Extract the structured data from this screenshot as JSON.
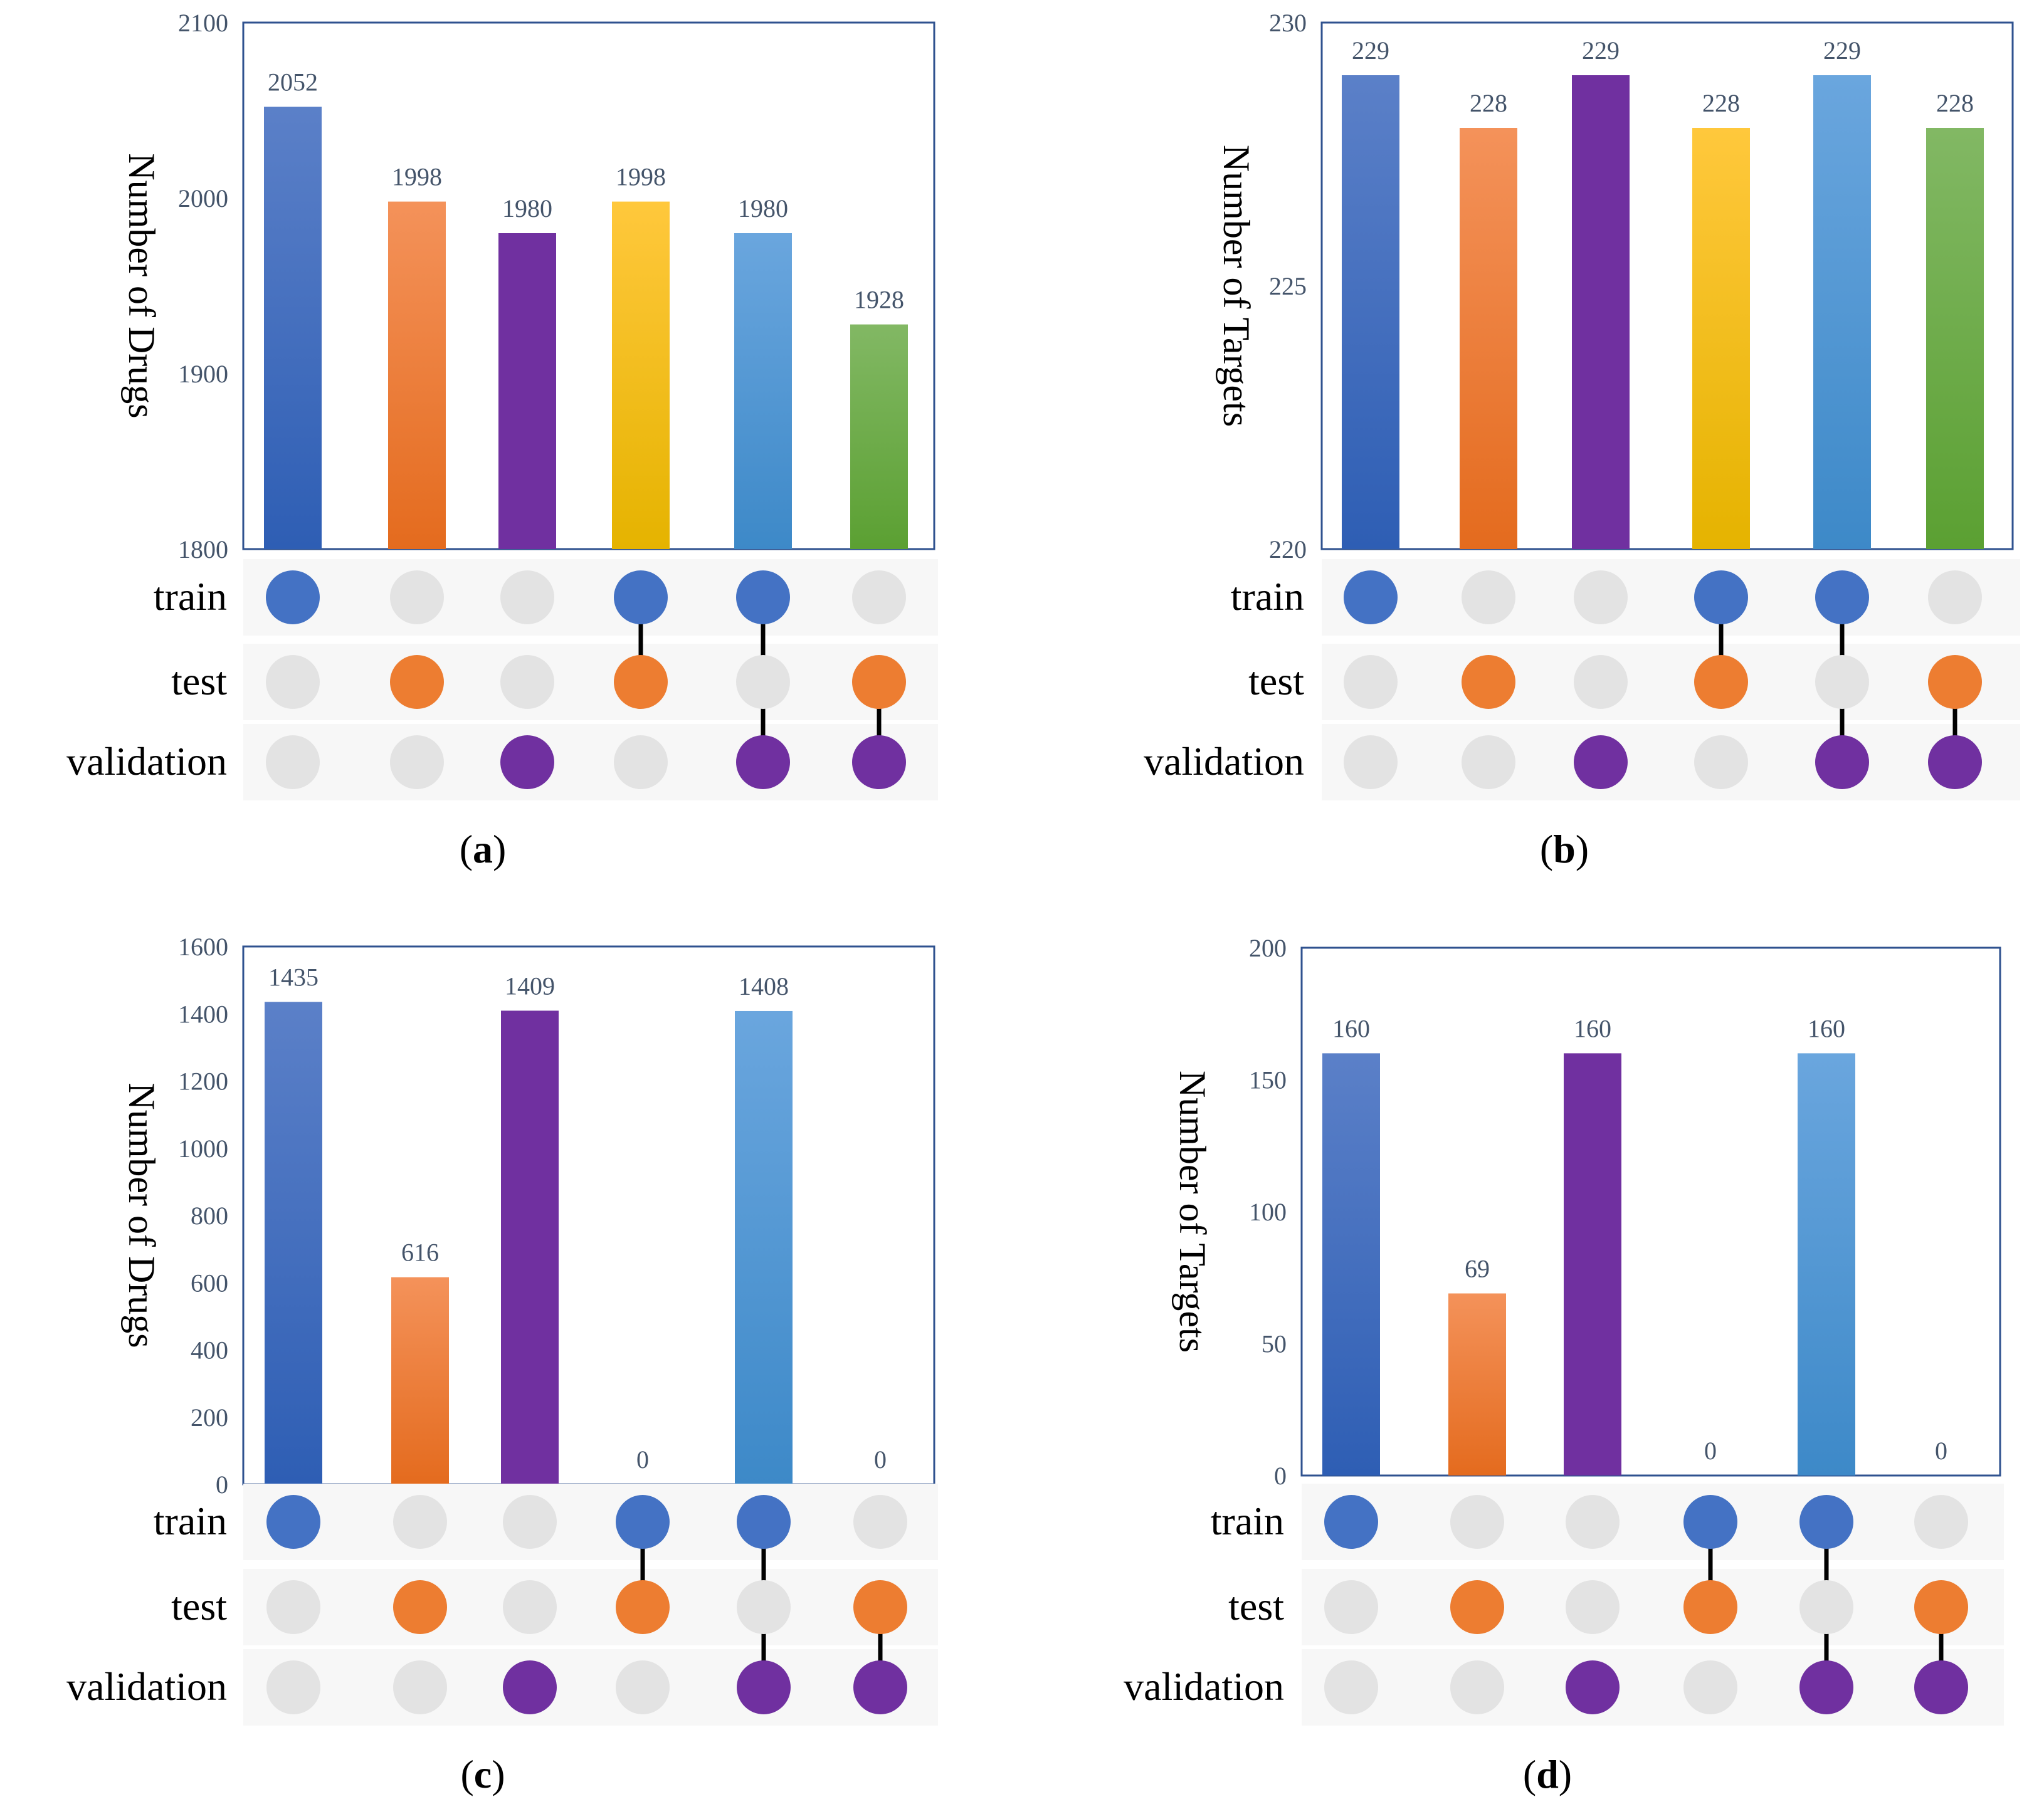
{
  "set_names": [
    "train",
    "test",
    "validation"
  ],
  "intersections": [
    {
      "sets": [
        0
      ]
    },
    {
      "sets": [
        1
      ]
    },
    {
      "sets": [
        2
      ]
    },
    {
      "sets": [
        0,
        1
      ]
    },
    {
      "sets": [
        0,
        2
      ]
    },
    {
      "sets": [
        1,
        2
      ]
    }
  ],
  "colors": {
    "bar_gradients": [
      [
        "#5B80C8",
        "#2E5EB4"
      ],
      [
        "#F4925A",
        "#E46B1E"
      ],
      [
        "#7030A0",
        "#7030A0"
      ],
      [
        "#FFC83C",
        "#E5B300"
      ],
      [
        "#6AA6DE",
        "#3D89C8"
      ],
      [
        "#82B864",
        "#5BA032"
      ]
    ],
    "dot_active": [
      "#4472C4",
      "#ED7D31",
      "#7030A0"
    ],
    "dot_inactive": "#E3E3E3",
    "matrix_band": "#F7F7F7",
    "axis": "#2F528F"
  },
  "chart_data": [
    {
      "type": "bar",
      "caption_letter": "a",
      "categories": [
        "train",
        "test",
        "validation",
        "train+test",
        "train+validation",
        "test+validation"
      ],
      "values": [
        2052,
        1998,
        1980,
        1998,
        1980,
        1928
      ],
      "value_labels": [
        "2052",
        "1998",
        "1980",
        "1998",
        "1980",
        "1928"
      ],
      "ylabel": "Number of  Drugs",
      "ylim": [
        1800,
        2100
      ],
      "yticks": [
        1800,
        1900,
        2000,
        2100
      ]
    },
    {
      "type": "bar",
      "caption_letter": "b",
      "categories": [
        "train",
        "test",
        "validation",
        "train+test",
        "train+validation",
        "test+validation"
      ],
      "values": [
        229,
        228,
        229,
        228,
        229,
        228
      ],
      "value_labels": [
        "229",
        "228",
        "229",
        "228",
        "229",
        "228"
      ],
      "ylabel": "Number of  Targets",
      "ylim": [
        220,
        230
      ],
      "yticks": [
        220,
        225,
        230
      ]
    },
    {
      "type": "bar",
      "caption_letter": "c",
      "categories": [
        "train",
        "test",
        "validation",
        "train+test",
        "train+validation",
        "test+validation"
      ],
      "values": [
        1435,
        616,
        1409,
        0,
        1408,
        0
      ],
      "value_labels": [
        "1435",
        "616",
        "1409",
        "0",
        "1408",
        "0"
      ],
      "ylabel": "Number of  Drugs",
      "ylim": [
        0,
        1600
      ],
      "yticks": [
        0,
        200,
        400,
        600,
        800,
        1000,
        1200,
        1400,
        1600
      ]
    },
    {
      "type": "bar",
      "caption_letter": "d",
      "categories": [
        "train",
        "test",
        "validation",
        "train+test",
        "train+validation",
        "test+validation"
      ],
      "values": [
        160,
        69,
        160,
        0,
        160,
        0
      ],
      "value_labels": [
        "160",
        "69",
        "160",
        "0",
        "160",
        "0"
      ],
      "ylabel": "Number of Targets",
      "ylim": [
        0,
        200
      ],
      "yticks": [
        0,
        50,
        100,
        150,
        200
      ]
    }
  ]
}
